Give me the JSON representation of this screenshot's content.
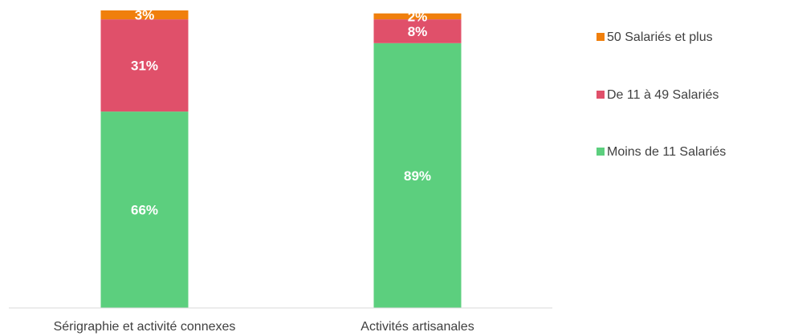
{
  "chart_data": {
    "type": "bar",
    "stacked": true,
    "percent": true,
    "title": "",
    "xlabel": "",
    "ylabel": "",
    "ylim": [
      0,
      100
    ],
    "grid": false,
    "legend_position": "right",
    "categories": [
      "Sérigraphie et activité connexes",
      "Activités artisanales"
    ],
    "series": [
      {
        "name": "Moins de 11 Salariés",
        "color": "#5ccf7e",
        "values": [
          66,
          89
        ],
        "labels": [
          "66%",
          "89%"
        ]
      },
      {
        "name": "De 11 à 49 Salariés",
        "color": "#e0506a",
        "values": [
          31,
          8
        ],
        "labels": [
          "31%",
          "8%"
        ]
      },
      {
        "name": "50 Salariés et plus",
        "color": "#f07f0c",
        "values": [
          3,
          2
        ],
        "labels": [
          "3%",
          "2%"
        ]
      }
    ],
    "legend_order": [
      "50 Salariés et plus",
      "De 11 à 49 Salariés",
      "Moins de 11 Salariés"
    ]
  }
}
